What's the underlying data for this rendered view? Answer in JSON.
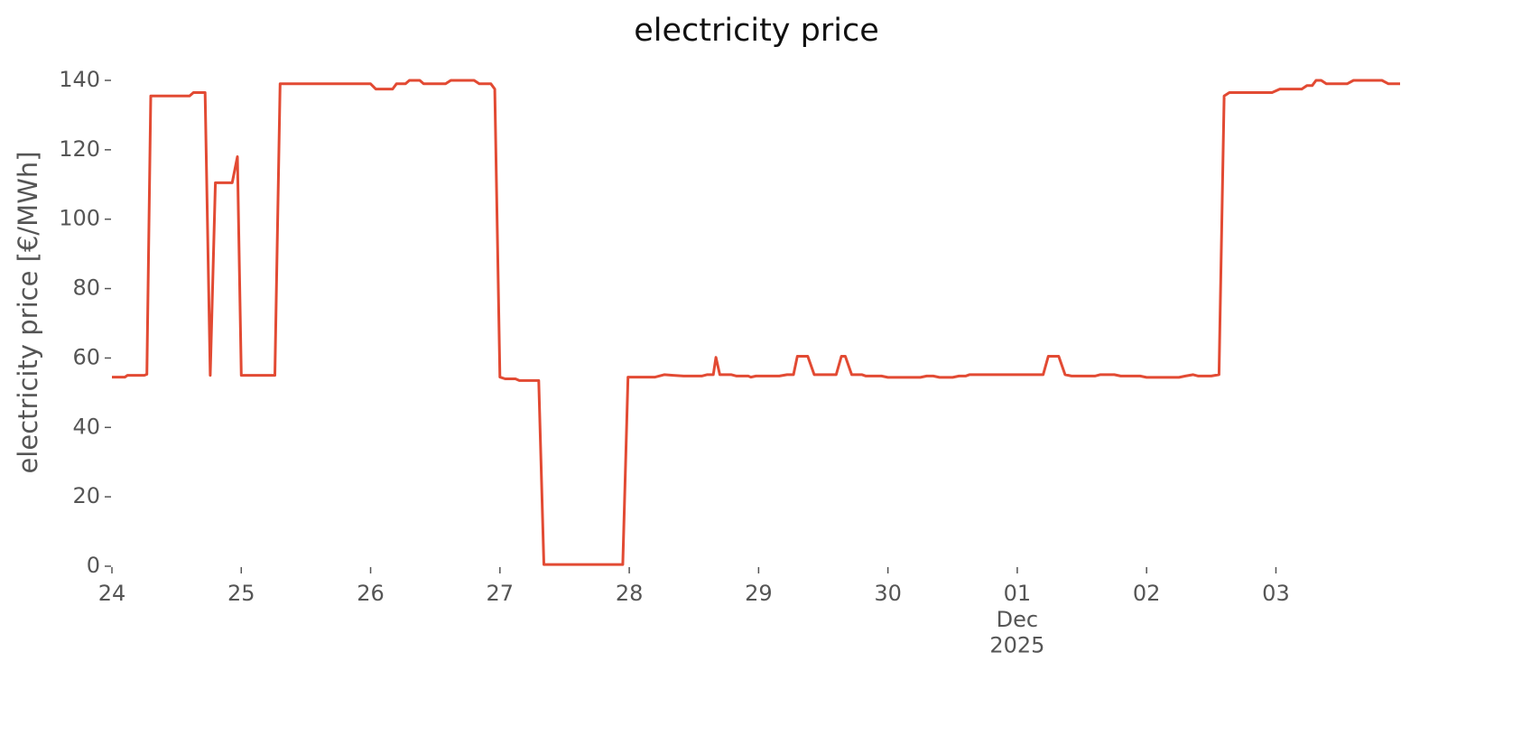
{
  "chart_data": {
    "type": "line",
    "title": "electricity price",
    "y_label": "electricity price [€/MWh]",
    "color": "#e24a33",
    "grid": false,
    "x": [
      0,
      0.1,
      0.12,
      0.25,
      0.27,
      0.3,
      0.6,
      0.63,
      0.72,
      0.76,
      0.8,
      0.93,
      0.97,
      1.0,
      1.26,
      1.3,
      2.0,
      2.04,
      2.17,
      2.2,
      2.27,
      2.3,
      2.38,
      2.41,
      2.58,
      2.62,
      2.8,
      2.84,
      2.93,
      2.96,
      3.0,
      3.04,
      3.12,
      3.15,
      3.3,
      3.34,
      3.95,
      3.99,
      4.2,
      4.27,
      4.34,
      4.42,
      4.56,
      4.6,
      4.65,
      4.67,
      4.7,
      4.79,
      4.83,
      4.92,
      4.94,
      4.98,
      5.16,
      5.22,
      5.27,
      5.3,
      5.38,
      5.43,
      5.6,
      5.64,
      5.67,
      5.72,
      5.8,
      5.83,
      5.95,
      6.0,
      6.25,
      6.3,
      6.35,
      6.4,
      6.5,
      6.55,
      6.6,
      6.63,
      7.2,
      7.24,
      7.32,
      7.37,
      7.42,
      7.6,
      7.64,
      7.75,
      7.8,
      7.95,
      8.0,
      8.25,
      8.3,
      8.36,
      8.4,
      8.5,
      8.56,
      8.6,
      8.64,
      8.97,
      9.03,
      9.2,
      9.24,
      9.28,
      9.31,
      9.35,
      9.39,
      9.55,
      9.6,
      9.82,
      9.87,
      9.96
    ],
    "values": [
      54.5,
      54.5,
      55,
      55,
      55.3,
      135.5,
      135.5,
      136.5,
      136.5,
      55,
      110.5,
      110.5,
      118,
      55,
      55,
      139,
      139,
      137.5,
      137.5,
      139,
      139,
      140,
      140,
      139,
      139,
      140,
      140,
      139,
      139,
      137.5,
      54.5,
      54,
      54,
      53.5,
      53.5,
      0.5,
      0.5,
      54.5,
      54.5,
      55.2,
      55,
      54.8,
      54.8,
      55.2,
      55.2,
      60.2,
      55.2,
      55.2,
      54.8,
      54.8,
      54.5,
      54.8,
      54.8,
      55.2,
      55.2,
      60.5,
      60.5,
      55.2,
      55.2,
      60.5,
      60.5,
      55.2,
      55.2,
      54.8,
      54.8,
      54.4,
      54.4,
      54.8,
      54.8,
      54.4,
      54.4,
      54.8,
      54.8,
      55.2,
      55.2,
      60.5,
      60.5,
      55.2,
      54.8,
      54.8,
      55.2,
      55.2,
      54.8,
      54.8,
      54.4,
      54.4,
      54.8,
      55.2,
      54.8,
      54.8,
      55.2,
      135.5,
      136.5,
      136.5,
      137.5,
      137.5,
      138.5,
      138.5,
      140,
      140,
      139,
      139,
      140,
      140,
      139,
      139
    ],
    "xlim": [
      0,
      9.96
    ],
    "xticks": [
      {
        "value": 0,
        "label": "24"
      },
      {
        "value": 1,
        "label": "25"
      },
      {
        "value": 2,
        "label": "26"
      },
      {
        "value": 3,
        "label": "27"
      },
      {
        "value": 4,
        "label": "28"
      },
      {
        "value": 5,
        "label": "29"
      },
      {
        "value": 6,
        "label": "30"
      },
      {
        "value": 7,
        "label": "01\nDec\n2025"
      },
      {
        "value": 8,
        "label": "02"
      },
      {
        "value": 9,
        "label": "03"
      }
    ],
    "ylim": [
      0,
      140
    ],
    "yticks": [
      0,
      20,
      40,
      60,
      80,
      100,
      120,
      140
    ]
  }
}
